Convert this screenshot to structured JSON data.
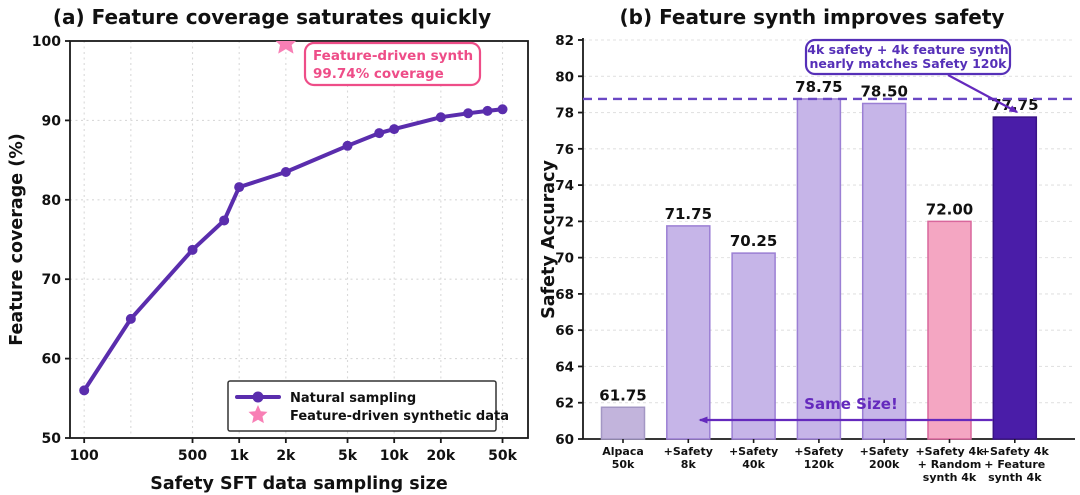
{
  "colors": {
    "background": "#ffffff",
    "axis": "#1a1a1a",
    "grid": "#d9d9d9",
    "tick_text": "#111111",
    "line_purple": "#5a2dad",
    "star_pink": "#f87fb5",
    "pink_annotation": "#ee4d88",
    "purple_annotation": "#5630b8",
    "dashed_reference": "#6a47c4",
    "arrow_purple": "#6429bd"
  },
  "chart_data": [
    {
      "type": "line",
      "title": "(a) Feature coverage saturates quickly",
      "xlabel": "Safety SFT data sampling size",
      "ylabel": "Feature coverage (%)",
      "x_scale": "log",
      "xlim": [
        81,
        73000
      ],
      "ylim": [
        50,
        100
      ],
      "grid": true,
      "x_ticks": [
        [
          100,
          "100"
        ],
        [
          500,
          "500"
        ],
        [
          1000,
          "1k"
        ],
        [
          2000,
          "2k"
        ],
        [
          5000,
          "5k"
        ],
        [
          10000,
          "10k"
        ],
        [
          20000,
          "20k"
        ],
        [
          50000,
          "50k"
        ]
      ],
      "x_gridlines": [
        100,
        200,
        500,
        1000,
        2000,
        5000,
        10000,
        20000,
        50000
      ],
      "y_ticks": [
        [
          50,
          "50"
        ],
        [
          60,
          "60"
        ],
        [
          70,
          "70"
        ],
        [
          80,
          "80"
        ],
        [
          90,
          "90"
        ],
        [
          100,
          "100"
        ]
      ],
      "series": [
        {
          "name": "Natural sampling",
          "x": [
            100,
            200,
            500,
            800,
            1000,
            2000,
            5000,
            8000,
            10000,
            20000,
            30000,
            40000,
            50000
          ],
          "y": [
            56.0,
            65.0,
            73.7,
            77.4,
            81.6,
            83.5,
            86.8,
            88.4,
            88.9,
            90.4,
            90.9,
            91.2,
            91.4
          ]
        }
      ],
      "synthetic_point": {
        "name": "Feature-driven synthetic data",
        "x": 2000,
        "y": 99.74
      },
      "annotation": {
        "line1": "Feature-driven synth",
        "line2": "99.74% coverage"
      },
      "legend": {
        "position": "lower right",
        "entries": [
          {
            "label": "Natural sampling",
            "marker": "line-circle"
          },
          {
            "label": "Feature-driven synthetic data",
            "marker": "star"
          }
        ]
      }
    },
    {
      "type": "bar",
      "title": "(b) Feature synth improves safety",
      "xlabel": "",
      "ylabel": "Safety Accuracy",
      "ylim": [
        60,
        82
      ],
      "grid": true,
      "y_ticks": [
        [
          60,
          "60"
        ],
        [
          62,
          "62"
        ],
        [
          64,
          "64"
        ],
        [
          66,
          "66"
        ],
        [
          68,
          "68"
        ],
        [
          70,
          "70"
        ],
        [
          72,
          "72"
        ],
        [
          74,
          "74"
        ],
        [
          76,
          "76"
        ],
        [
          78,
          "78"
        ],
        [
          80,
          "80"
        ],
        [
          82,
          "82"
        ]
      ],
      "categories": [
        [
          "Alpaca",
          "50k"
        ],
        [
          "+Safety",
          "8k"
        ],
        [
          "+Safety",
          "40k"
        ],
        [
          "+Safety",
          "120k"
        ],
        [
          "+Safety",
          "200k"
        ],
        [
          "+Safety 4k",
          "+ Random",
          "synth 4k"
        ],
        [
          "+Safety 4k",
          "+ Feature",
          "synth 4k"
        ]
      ],
      "values": [
        61.75,
        71.75,
        70.25,
        78.75,
        78.5,
        72.0,
        77.75
      ],
      "value_labels": [
        "61.75",
        "71.75",
        "70.25",
        "78.75",
        "78.50",
        "72.00",
        "77.75"
      ],
      "bar_fills": [
        "#c2b4dc",
        "#c6b5e8",
        "#c6b5e8",
        "#c6b5e8",
        "#c6b5e8",
        "#f4a6c2",
        "#4a1da8"
      ],
      "bar_edges": [
        "#a397c4",
        "#9b7fd4",
        "#9b7fd4",
        "#9b7fd4",
        "#9b7fd4",
        "#d9679c",
        "#3a1387"
      ],
      "reference_line": {
        "y": 78.75
      },
      "annotation": {
        "line1": "4k safety + 4k feature synth",
        "line2": "nearly matches Safety 120k"
      },
      "same_size": {
        "label": "Same Size!"
      }
    }
  ]
}
